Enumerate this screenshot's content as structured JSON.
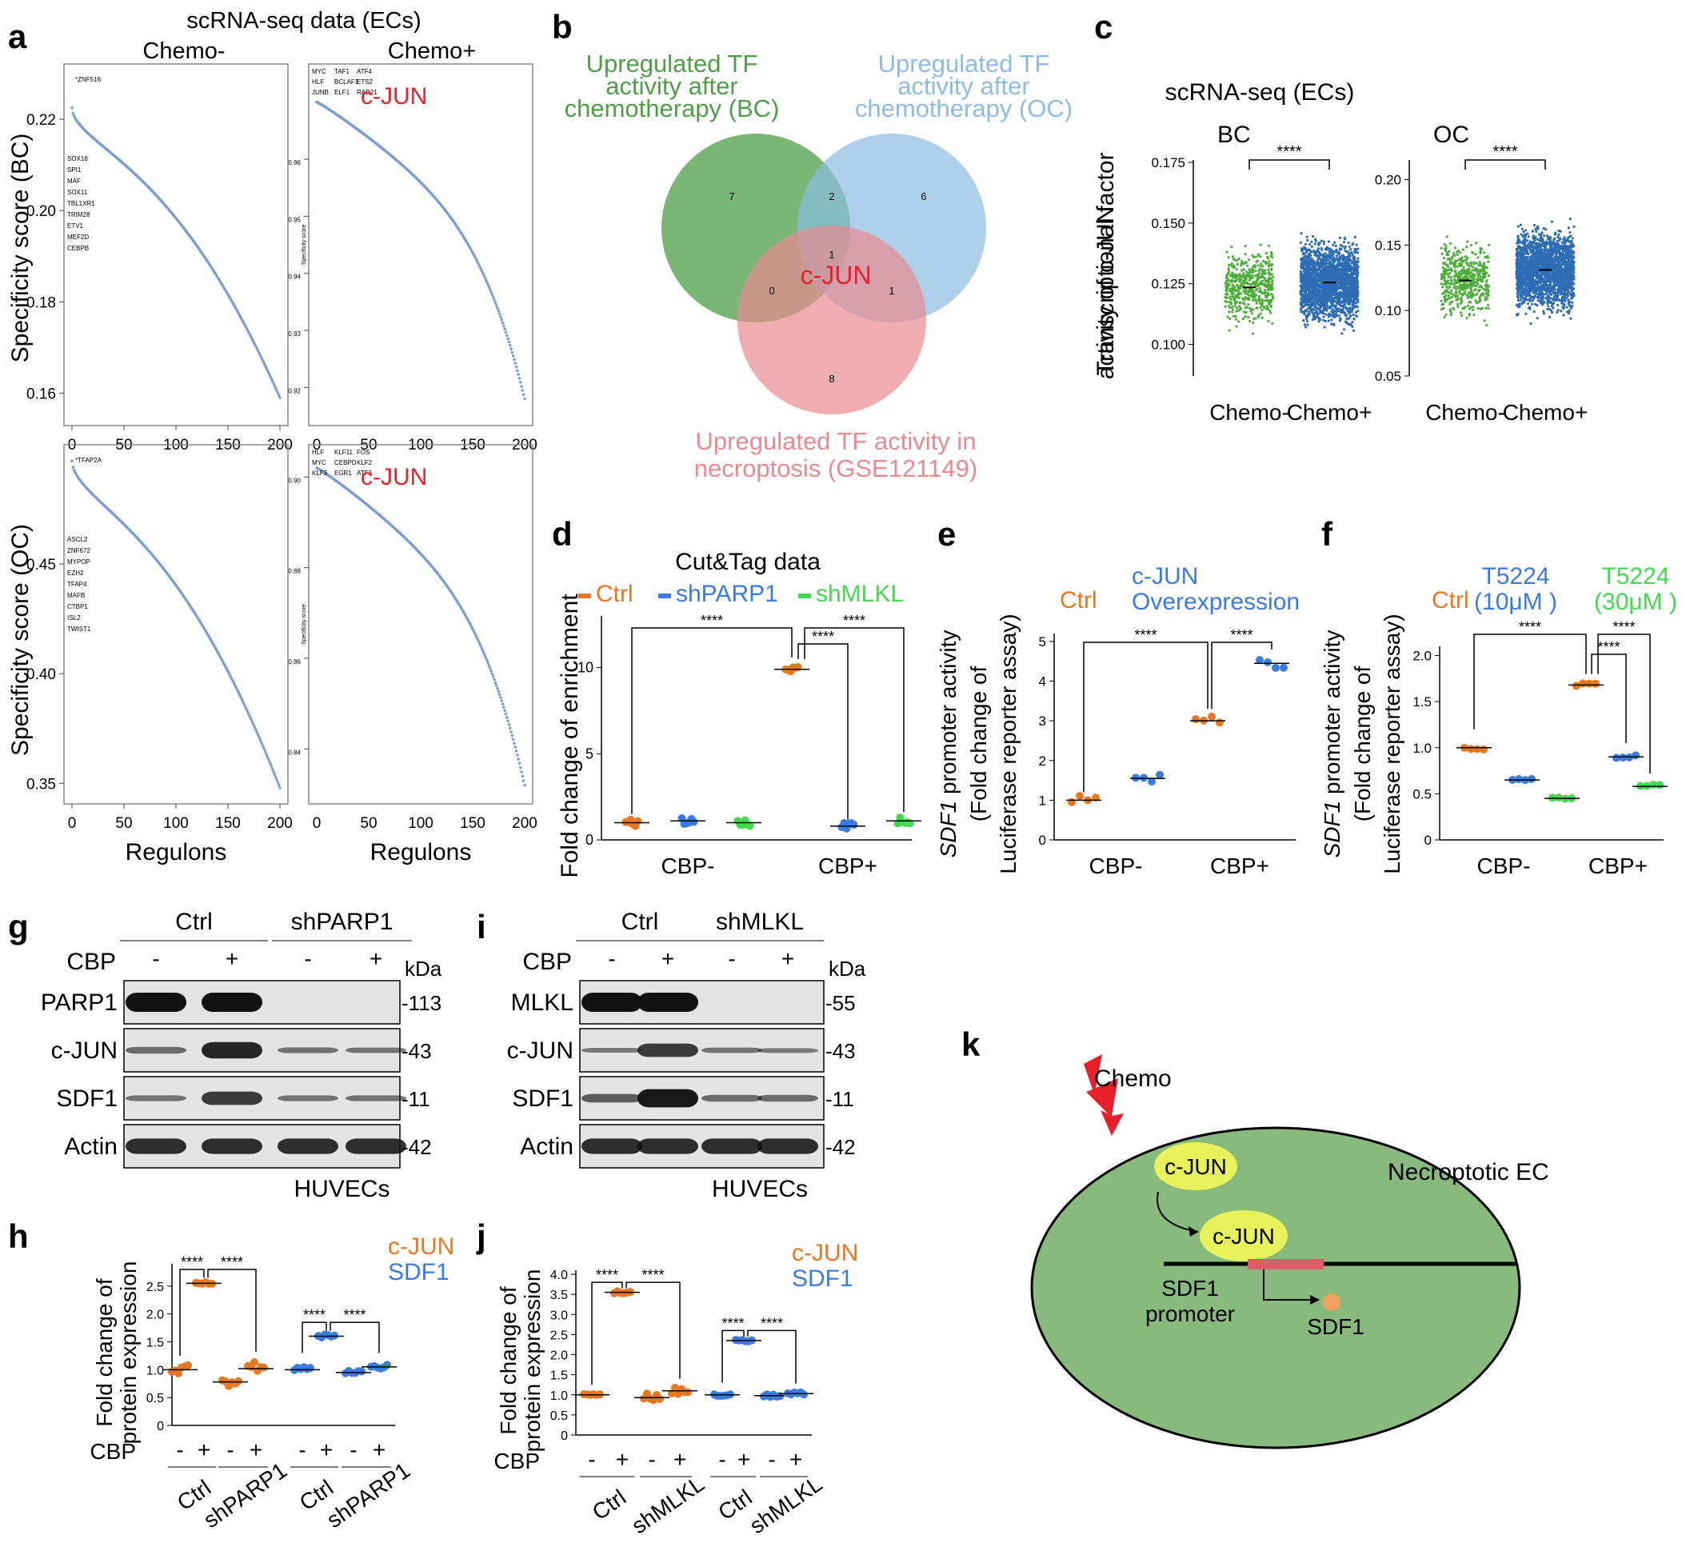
{
  "panel_labels": [
    "a",
    "b",
    "c",
    "d",
    "e",
    "f",
    "g",
    "h",
    "i",
    "j",
    "k"
  ],
  "colors": {
    "ctrl": "#E87722",
    "shparp1": "#3A7BE0",
    "shmlkl": "#42D94E",
    "chemo_minus": "#4DAF3A",
    "chemo_plus": "#2E6DB4",
    "regulon": "#7B9FCF",
    "venn_green": "#4E9F48",
    "venn_blue": "#8DBCE3",
    "venn_red": "#E88A92",
    "cell": "#87BA7C",
    "red": "#E8202A"
  },
  "panel_a": {
    "title": "scRNA-seq data (ECs)",
    "col_titles": [
      "Chemo-",
      "Chemo+"
    ],
    "row_ylabels": [
      "Specificity score (BC)",
      "Specificity score (OC)"
    ],
    "xlabel": "Regulons",
    "highlight": "c-JUN",
    "bc_minus_labels": [
      "ZNF516",
      "SOX18",
      "SPI1",
      "MAF",
      "SOX11",
      "TBL1XR1",
      "TRIM28",
      "ETV1",
      "MEF2D",
      "CEBPB"
    ],
    "bc_plus_labels": [
      "MYC",
      "TAF1",
      "ATF4",
      "HLF",
      "BCLAF1",
      "ETS2",
      "JUNB",
      "ELF1",
      "RAD21"
    ],
    "oc_minus_labels": [
      "TFAP2A",
      "ASCL2",
      "ZNF672",
      "MYPOP",
      "EZH2",
      "TFAP4",
      "MAFB",
      "CTBP1",
      "ISL2",
      "TWIST1"
    ],
    "oc_plus_labels": [
      "HLF",
      "KLF11",
      "FOS",
      "MYC",
      "CEBPD",
      "KLF2",
      "KLF3",
      "EGR1",
      "ATF3"
    ],
    "small_ylabel": "Specificity score"
  },
  "chart_data": [
    {
      "panel": "a",
      "type": "scatter",
      "title": "Specificity score (BC), Chemo-",
      "x_range": [
        0,
        200
      ],
      "ylim": [
        0.155,
        0.23
      ],
      "x_ticks": [
        "0",
        "50",
        "100",
        "150",
        "200"
      ],
      "y_ticks": [
        "0.16",
        "0.18",
        "0.20",
        "0.22"
      ],
      "y_start": 0.2225,
      "y_end": 0.159
    },
    {
      "panel": "a",
      "type": "scatter",
      "title": "Specificity score (BC), Chemo+",
      "x_range": [
        0,
        200
      ],
      "y_ticks": [
        "0.96",
        "0.95",
        "0.94",
        "0.93",
        "0.92"
      ],
      "ylim": [
        0.915,
        0.975
      ],
      "y_start": 0.97,
      "y_end": 0.918
    },
    {
      "panel": "a",
      "type": "scatter",
      "title": "Specificity score (OC), Chemo-",
      "x_range": [
        0,
        200
      ],
      "ylim": [
        0.345,
        0.5
      ],
      "x_ticks": [
        "0",
        "50",
        "100",
        "150",
        "200"
      ],
      "y_ticks": [
        "0.35",
        "0.40",
        "0.45"
      ],
      "y_start": 0.497,
      "y_end": 0.348
    },
    {
      "panel": "a",
      "type": "scatter",
      "title": "Specificity score (OC), Chemo+",
      "x_range": [
        0,
        200
      ],
      "y_ticks": [
        "0.90",
        "0.88",
        "0.86",
        "0.84"
      ],
      "ylim": [
        0.83,
        0.905
      ],
      "y_start": 0.902,
      "y_end": 0.832
    },
    {
      "panel": "b",
      "type": "venn",
      "sets": [
        "Upregulated TF activity after chemotherapy (BC)",
        "Upregulated TF activity after chemotherapy (OC)",
        "Upregulated TF activity in necroptosis (GSE121149)"
      ],
      "regions": {
        "green_only": 7,
        "blue_only": 6,
        "red_only": 8,
        "green_blue": 2,
        "green_red": 0,
        "blue_red": 1,
        "all": 1
      },
      "center_label": "c-JUN"
    },
    {
      "panel": "c",
      "type": "scatter",
      "title": "BC",
      "ylabel": "Transcriptional factor activity of c-JUN",
      "categories": [
        "Chemo-",
        "Chemo+"
      ],
      "y_ticks": [
        "0.100",
        "0.125",
        "0.150",
        "0.175"
      ],
      "ylim": [
        0.087,
        0.176
      ],
      "means": [
        0.1235,
        0.1255
      ],
      "sig": "****"
    },
    {
      "panel": "c",
      "type": "scatter",
      "title": "OC",
      "categories": [
        "Chemo-",
        "Chemo+"
      ],
      "y_ticks": [
        "0.05",
        "0.10",
        "0.15",
        "0.20"
      ],
      "ylim": [
        0.05,
        0.215
      ],
      "means": [
        0.123,
        0.131
      ],
      "sig": "****"
    },
    {
      "panel": "d",
      "type": "scatter",
      "title": "Cut&Tag data",
      "ylabel": "Fold change of enrichment",
      "categories": [
        "CBP-",
        "CBP+"
      ],
      "series": [
        {
          "name": "Ctrl",
          "values": [
            1.0,
            9.9
          ]
        },
        {
          "name": "shPARP1",
          "values": [
            1.1,
            0.8
          ]
        },
        {
          "name": "shMLKL",
          "values": [
            1.0,
            1.1
          ]
        }
      ],
      "y_ticks": [
        "0",
        "5",
        "10"
      ],
      "ylim": [
        0,
        13
      ],
      "sig": [
        "****",
        "****",
        "****"
      ]
    },
    {
      "panel": "e",
      "type": "scatter",
      "ylabel": "SDF1 promoter activity (Fold change of Luciferase reporter assay)",
      "categories": [
        "CBP-",
        "CBP+"
      ],
      "series": [
        {
          "name": "Ctrl",
          "values": [
            1.0,
            3.0
          ]
        },
        {
          "name": "c-JUN Overexpression",
          "values": [
            1.55,
            4.45
          ]
        }
      ],
      "y_ticks": [
        "0",
        "1",
        "2",
        "3",
        "4",
        "5"
      ],
      "ylim": [
        0,
        5.2
      ],
      "sig": [
        "****",
        "****"
      ]
    },
    {
      "panel": "f",
      "type": "scatter",
      "ylabel": "SDF1 promoter activity (Fold change of Luciferase reporter assay)",
      "categories": [
        "CBP-",
        "CBP+"
      ],
      "series": [
        {
          "name": "Ctrl",
          "values": [
            1.0,
            1.68
          ]
        },
        {
          "name": "T5224 (10μM )",
          "values": [
            0.65,
            0.9
          ]
        },
        {
          "name": "T5224 (30μM )",
          "values": [
            0.45,
            0.58
          ]
        }
      ],
      "y_ticks": [
        "0",
        "0.5",
        "1.0",
        "1.5",
        "2.0"
      ],
      "ylim": [
        0,
        2.1
      ],
      "sig": [
        "****",
        "****",
        "****"
      ]
    },
    {
      "panel": "h",
      "type": "scatter",
      "ylabel": "Fold change of protein expression",
      "categories": [
        "Ctrl -",
        "Ctrl +",
        "shPARP1 -",
        "shPARP1 +"
      ],
      "series": [
        {
          "name": "c-JUN",
          "values": [
            1.0,
            2.55,
            0.78,
            1.02
          ]
        },
        {
          "name": "SDF1",
          "values": [
            1.0,
            1.6,
            0.95,
            1.05
          ]
        }
      ],
      "y_ticks": [
        "0",
        "0.5",
        "1.0",
        "1.5",
        "2.0",
        "2.5"
      ],
      "ylim": [
        0,
        2.9
      ],
      "sig": [
        "****",
        "****",
        "****",
        "****"
      ]
    },
    {
      "panel": "j",
      "type": "scatter",
      "ylabel": "Fold change of protein expression",
      "categories": [
        "Ctrl -",
        "Ctrl +",
        "shMLKL -",
        "shMLKL +"
      ],
      "series": [
        {
          "name": "c-JUN",
          "values": [
            1.0,
            3.55,
            0.93,
            1.1
          ]
        },
        {
          "name": "SDF1",
          "values": [
            1.0,
            2.35,
            0.98,
            1.03
          ]
        }
      ],
      "y_ticks": [
        "0",
        "0.5",
        "1.0",
        "1.5",
        "2.0",
        "2.5",
        "3.0",
        "3.5",
        "4.0"
      ],
      "ylim": [
        0,
        4.1
      ],
      "sig": [
        "****",
        "****",
        "****",
        "****"
      ]
    }
  ],
  "panel_b": {
    "sets": [
      "Upregulated TF\nactivity after\nchemotherapy (BC)",
      "Upregulated TF\nactivity after\nchemotherapy (OC)",
      "Upregulated TF activity in\nnecroptosis (GSE121149)"
    ],
    "center": "c-JUN"
  },
  "panel_c": {
    "title": "scRNA-seq (ECs)",
    "ylabel": "Transcriptional factor\nactivity of c-JUN",
    "groups": [
      "BC",
      "OC"
    ],
    "xcats": [
      "Chemo-",
      "Chemo+"
    ]
  },
  "panel_d": {
    "title": "Cut&Tag data",
    "legend": [
      "Ctrl",
      "shPARP1",
      "shMLKL"
    ],
    "ylabel": "Fold change of enrichment",
    "xcats": [
      "CBP-",
      "CBP+"
    ]
  },
  "panel_e": {
    "legend": [
      "Ctrl",
      "c-JUN\nOverexpression"
    ],
    "ylabel_gene": "SDF1",
    "ylabel_rest": " promoter activity",
    "ylabel2": "(Fold change of",
    "ylabel3": "Luciferase reporter assay)",
    "xcats": [
      "CBP-",
      "CBP+"
    ]
  },
  "panel_f": {
    "legend": [
      "Ctrl",
      "T5224\n(10μM )",
      "T5224\n(30μM )"
    ],
    "xcats": [
      "CBP-",
      "CBP+"
    ]
  },
  "panel_g": {
    "groups": [
      "Ctrl",
      "shPARP1"
    ],
    "cbp_label": "CBP",
    "cbp_signs": [
      "-",
      "+",
      "-",
      "+"
    ],
    "kda": "kDa",
    "rows": [
      {
        "name": "PARP1",
        "kda": "-113"
      },
      {
        "name": "c-JUN",
        "kda": "-43"
      },
      {
        "name": "SDF1",
        "kda": "-11"
      },
      {
        "name": "Actin",
        "kda": "-42"
      }
    ],
    "cell": "HUVECs"
  },
  "panel_i": {
    "groups": [
      "Ctrl",
      "shMLKL"
    ],
    "cbp_label": "CBP",
    "cbp_signs": [
      "-",
      "+",
      "-",
      "+"
    ],
    "kda": "kDa",
    "rows": [
      {
        "name": "MLKL",
        "kda": "-55"
      },
      {
        "name": "c-JUN",
        "kda": "-43"
      },
      {
        "name": "SDF1",
        "kda": "-11"
      },
      {
        "name": "Actin",
        "kda": "-42"
      }
    ],
    "cell": "HUVECs"
  },
  "panel_h": {
    "legend": [
      "c-JUN",
      "SDF1"
    ],
    "ylabel": "Fold change of\nprotein expression",
    "cbp": "CBP",
    "signs": [
      "-",
      "+",
      "-",
      "+",
      "-",
      "+",
      "-",
      "+"
    ],
    "groups": [
      "Ctrl",
      "shPARP1",
      "Ctrl",
      "shPARP1"
    ]
  },
  "panel_j": {
    "legend": [
      "c-JUN",
      "SDF1"
    ],
    "ylabel": "Fold change of\nprotein expression",
    "cbp": "CBP",
    "signs": [
      "-",
      "+",
      "-",
      "+",
      "-",
      "+",
      "-",
      "+"
    ],
    "groups": [
      "Ctrl",
      "shMLKL",
      "Ctrl",
      "shMLKL"
    ]
  },
  "panel_k": {
    "chemo": "Chemo",
    "cell": "Necroptotic EC",
    "cjun": "c-JUN",
    "promoter": "SDF1\npromoter",
    "sdf1": "SDF1"
  }
}
